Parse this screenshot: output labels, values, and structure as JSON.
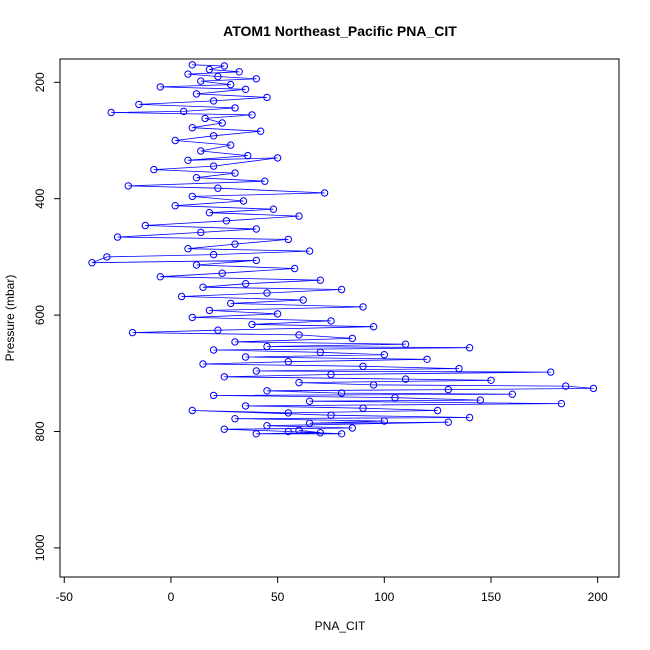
{
  "chart_data": {
    "type": "scatter",
    "title": "ATOM1 Northeast_Pacific PNA_CIT",
    "xlabel": "PNA_CIT",
    "ylabel": "Pressure (mbar)",
    "xlim": [
      -52,
      210
    ],
    "ylim": [
      1050,
      160
    ],
    "x_ticks": [
      -50,
      0,
      50,
      100,
      150,
      200
    ],
    "y_ticks": [
      200,
      400,
      600,
      800,
      1000
    ],
    "grid": false,
    "series": [
      {
        "color": "#0000ff",
        "marker": "open-circle",
        "connected": true,
        "points": [
          [
            10,
            170
          ],
          [
            25,
            172
          ],
          [
            18,
            178
          ],
          [
            32,
            182
          ],
          [
            8,
            186
          ],
          [
            22,
            190
          ],
          [
            40,
            194
          ],
          [
            14,
            198
          ],
          [
            28,
            204
          ],
          [
            -5,
            208
          ],
          [
            35,
            212
          ],
          [
            12,
            220
          ],
          [
            45,
            226
          ],
          [
            20,
            232
          ],
          [
            -15,
            238
          ],
          [
            30,
            244
          ],
          [
            6,
            250
          ],
          [
            -28,
            252
          ],
          [
            38,
            256
          ],
          [
            16,
            262
          ],
          [
            24,
            270
          ],
          [
            10,
            278
          ],
          [
            42,
            284
          ],
          [
            20,
            292
          ],
          [
            2,
            300
          ],
          [
            28,
            308
          ],
          [
            14,
            318
          ],
          [
            36,
            326
          ],
          [
            8,
            334
          ],
          [
            50,
            330
          ],
          [
            20,
            344
          ],
          [
            -8,
            350
          ],
          [
            30,
            356
          ],
          [
            12,
            364
          ],
          [
            44,
            370
          ],
          [
            -20,
            378
          ],
          [
            22,
            382
          ],
          [
            72,
            390
          ],
          [
            10,
            396
          ],
          [
            34,
            404
          ],
          [
            2,
            412
          ],
          [
            48,
            418
          ],
          [
            18,
            424
          ],
          [
            60,
            430
          ],
          [
            26,
            438
          ],
          [
            -12,
            446
          ],
          [
            40,
            452
          ],
          [
            14,
            458
          ],
          [
            -25,
            466
          ],
          [
            55,
            470
          ],
          [
            30,
            478
          ],
          [
            8,
            486
          ],
          [
            65,
            490
          ],
          [
            20,
            496
          ],
          [
            -30,
            500
          ],
          [
            -37,
            510
          ],
          [
            40,
            506
          ],
          [
            12,
            514
          ],
          [
            58,
            520
          ],
          [
            24,
            528
          ],
          [
            -5,
            534
          ],
          [
            70,
            540
          ],
          [
            35,
            546
          ],
          [
            15,
            552
          ],
          [
            80,
            556
          ],
          [
            45,
            562
          ],
          [
            5,
            568
          ],
          [
            62,
            574
          ],
          [
            28,
            580
          ],
          [
            90,
            586
          ],
          [
            18,
            592
          ],
          [
            50,
            598
          ],
          [
            10,
            604
          ],
          [
            75,
            610
          ],
          [
            38,
            616
          ],
          [
            95,
            620
          ],
          [
            22,
            626
          ],
          [
            -18,
            630
          ],
          [
            60,
            634
          ],
          [
            85,
            640
          ],
          [
            30,
            646
          ],
          [
            110,
            650
          ],
          [
            45,
            654
          ],
          [
            140,
            656
          ],
          [
            20,
            660
          ],
          [
            70,
            664
          ],
          [
            100,
            668
          ],
          [
            35,
            672
          ],
          [
            120,
            676
          ],
          [
            55,
            680
          ],
          [
            15,
            684
          ],
          [
            90,
            688
          ],
          [
            135,
            692
          ],
          [
            40,
            696
          ],
          [
            178,
            698
          ],
          [
            75,
            702
          ],
          [
            25,
            706
          ],
          [
            110,
            710
          ],
          [
            150,
            712
          ],
          [
            60,
            716
          ],
          [
            95,
            720
          ],
          [
            185,
            722
          ],
          [
            198,
            726
          ],
          [
            130,
            728
          ],
          [
            45,
            730
          ],
          [
            80,
            734
          ],
          [
            160,
            736
          ],
          [
            20,
            738
          ],
          [
            105,
            742
          ],
          [
            145,
            746
          ],
          [
            65,
            748
          ],
          [
            183,
            752
          ],
          [
            35,
            756
          ],
          [
            90,
            760
          ],
          [
            125,
            764
          ],
          [
            55,
            768
          ],
          [
            10,
            764
          ],
          [
            75,
            772
          ],
          [
            140,
            776
          ],
          [
            30,
            778
          ],
          [
            100,
            782
          ],
          [
            65,
            786
          ],
          [
            130,
            784
          ],
          [
            45,
            790
          ],
          [
            85,
            794
          ],
          [
            25,
            796
          ],
          [
            55,
            800
          ],
          [
            80,
            804
          ],
          [
            40,
            804
          ],
          [
            70,
            802
          ],
          [
            60,
            798
          ]
        ]
      }
    ]
  }
}
